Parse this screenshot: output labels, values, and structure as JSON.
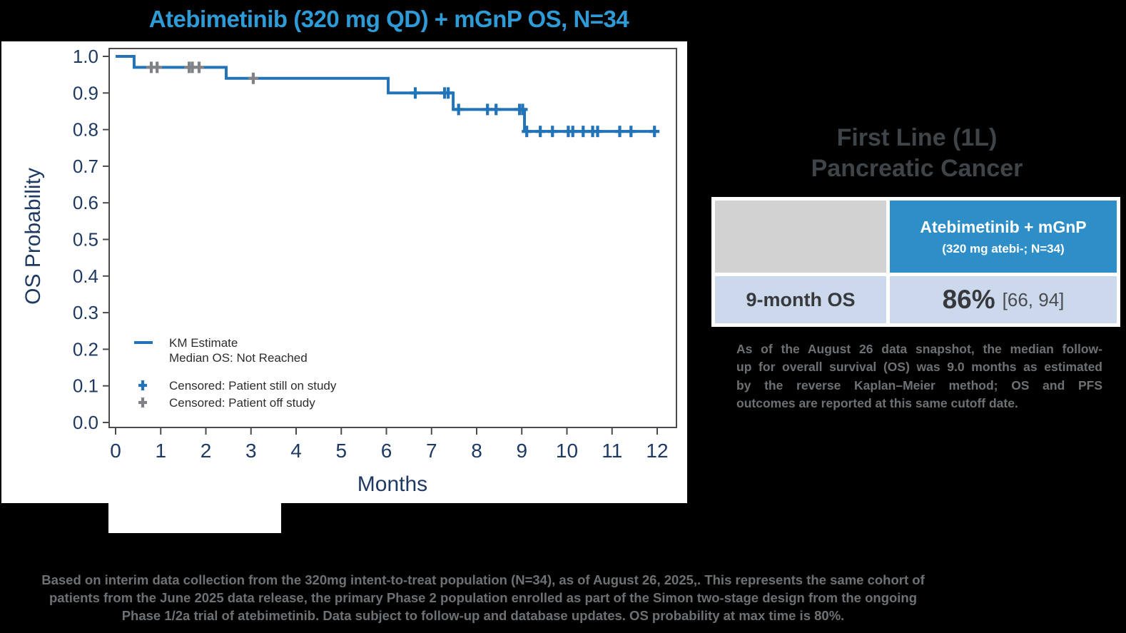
{
  "colors": {
    "title_blue": "#2e9bd6",
    "km_line": "#2273b8",
    "censor_blue": "#2273b8",
    "censor_gray": "#808285",
    "axis_navy": "#1e3a63",
    "plot_border": "#4a4b4f",
    "legend_text": "#2b2d2f",
    "heading_gray": "#3f4448",
    "table_header_blue": "#2e8ec8",
    "table_row_blue": "#ccd9ec",
    "cell_gray": "#d2d2d2",
    "cell_dark": "#37393c",
    "text_gray": "#6d7174"
  },
  "chart_data": {
    "type": "line",
    "subtype": "kaplan-meier-step",
    "title": "Atebimetinib (320 mg QD) + mGnP OS, N=34",
    "xlabel": "Months",
    "ylabel": "OS Probability",
    "xlim": [
      0,
      12.4
    ],
    "ylim": [
      0.0,
      1.0
    ],
    "xticks": [
      0,
      1,
      2,
      3,
      4,
      5,
      6,
      7,
      8,
      9,
      10,
      11,
      12
    ],
    "yticks": [
      0.0,
      0.1,
      0.2,
      0.3,
      0.4,
      0.5,
      0.6,
      0.7,
      0.8,
      0.9,
      1.0
    ],
    "grid": false,
    "max_time": 12.0,
    "km_steps": [
      {
        "t": 0.0,
        "s": 1.0
      },
      {
        "t": 0.41,
        "s": 0.97
      },
      {
        "t": 2.45,
        "s": 0.94
      },
      {
        "t": 6.04,
        "s": 0.9
      },
      {
        "t": 7.48,
        "s": 0.855
      },
      {
        "t": 9.06,
        "s": 0.795
      }
    ],
    "censored_on_study": [
      {
        "t": 6.64,
        "s": 0.9
      },
      {
        "t": 7.29,
        "s": 0.9
      },
      {
        "t": 7.37,
        "s": 0.9
      },
      {
        "t": 7.6,
        "s": 0.855
      },
      {
        "t": 8.24,
        "s": 0.855
      },
      {
        "t": 8.43,
        "s": 0.855
      },
      {
        "t": 8.95,
        "s": 0.855
      },
      {
        "t": 9.02,
        "s": 0.855
      },
      {
        "t": 9.11,
        "s": 0.795
      },
      {
        "t": 9.41,
        "s": 0.795
      },
      {
        "t": 9.68,
        "s": 0.795
      },
      {
        "t": 10.03,
        "s": 0.795
      },
      {
        "t": 10.13,
        "s": 0.795
      },
      {
        "t": 10.36,
        "s": 0.795
      },
      {
        "t": 10.57,
        "s": 0.795
      },
      {
        "t": 10.68,
        "s": 0.795
      },
      {
        "t": 11.17,
        "s": 0.795
      },
      {
        "t": 11.42,
        "s": 0.795
      },
      {
        "t": 11.94,
        "s": 0.795
      }
    ],
    "censored_off_study": [
      {
        "t": 0.79,
        "s": 0.97
      },
      {
        "t": 0.92,
        "s": 0.97
      },
      {
        "t": 1.63,
        "s": 0.97
      },
      {
        "t": 1.7,
        "s": 0.97
      },
      {
        "t": 1.85,
        "s": 0.97
      },
      {
        "t": 3.05,
        "s": 0.94
      }
    ],
    "legend": {
      "position": "inside-lower-left",
      "km_label": "KM Estimate",
      "km_sublabel": "Median OS: Not Reached",
      "censored_on_label": "Censored: Patient still on study",
      "censored_off_label": "Censored: Patient off study"
    }
  },
  "right_panel": {
    "heading_line1": "First Line (1L)",
    "heading_line2": "Pancreatic Cancer",
    "table": {
      "header_title": "Atebimetinib + mGnP",
      "header_sub": "(320 mg atebi-; N=34)",
      "row_label": "9-month OS",
      "value": "86%",
      "ci": "[66, 94]"
    },
    "paragraph_lines": [
      "As of the August 26  data snapshot, the median follow-",
      "up for overall survival (OS) was 9.0 months as estimated",
      "by the reverse Kaplan–Meier method; OS and PFS",
      "outcomes are reported at this same cutoff date."
    ]
  },
  "footnote": {
    "lines": [
      "Based on interim data collection from the 320mg intent-to-treat population (N=34), as of August 26, 2025,. This represents the same cohort of",
      "patients from the June 2025 data release, the primary Phase 2 population enrolled as part of the Simon two-stage design from the ongoing",
      "Phase 1/2a trial of atebimetinib. Data subject to follow-up and database updates. OS probability at max time is 80%."
    ]
  }
}
